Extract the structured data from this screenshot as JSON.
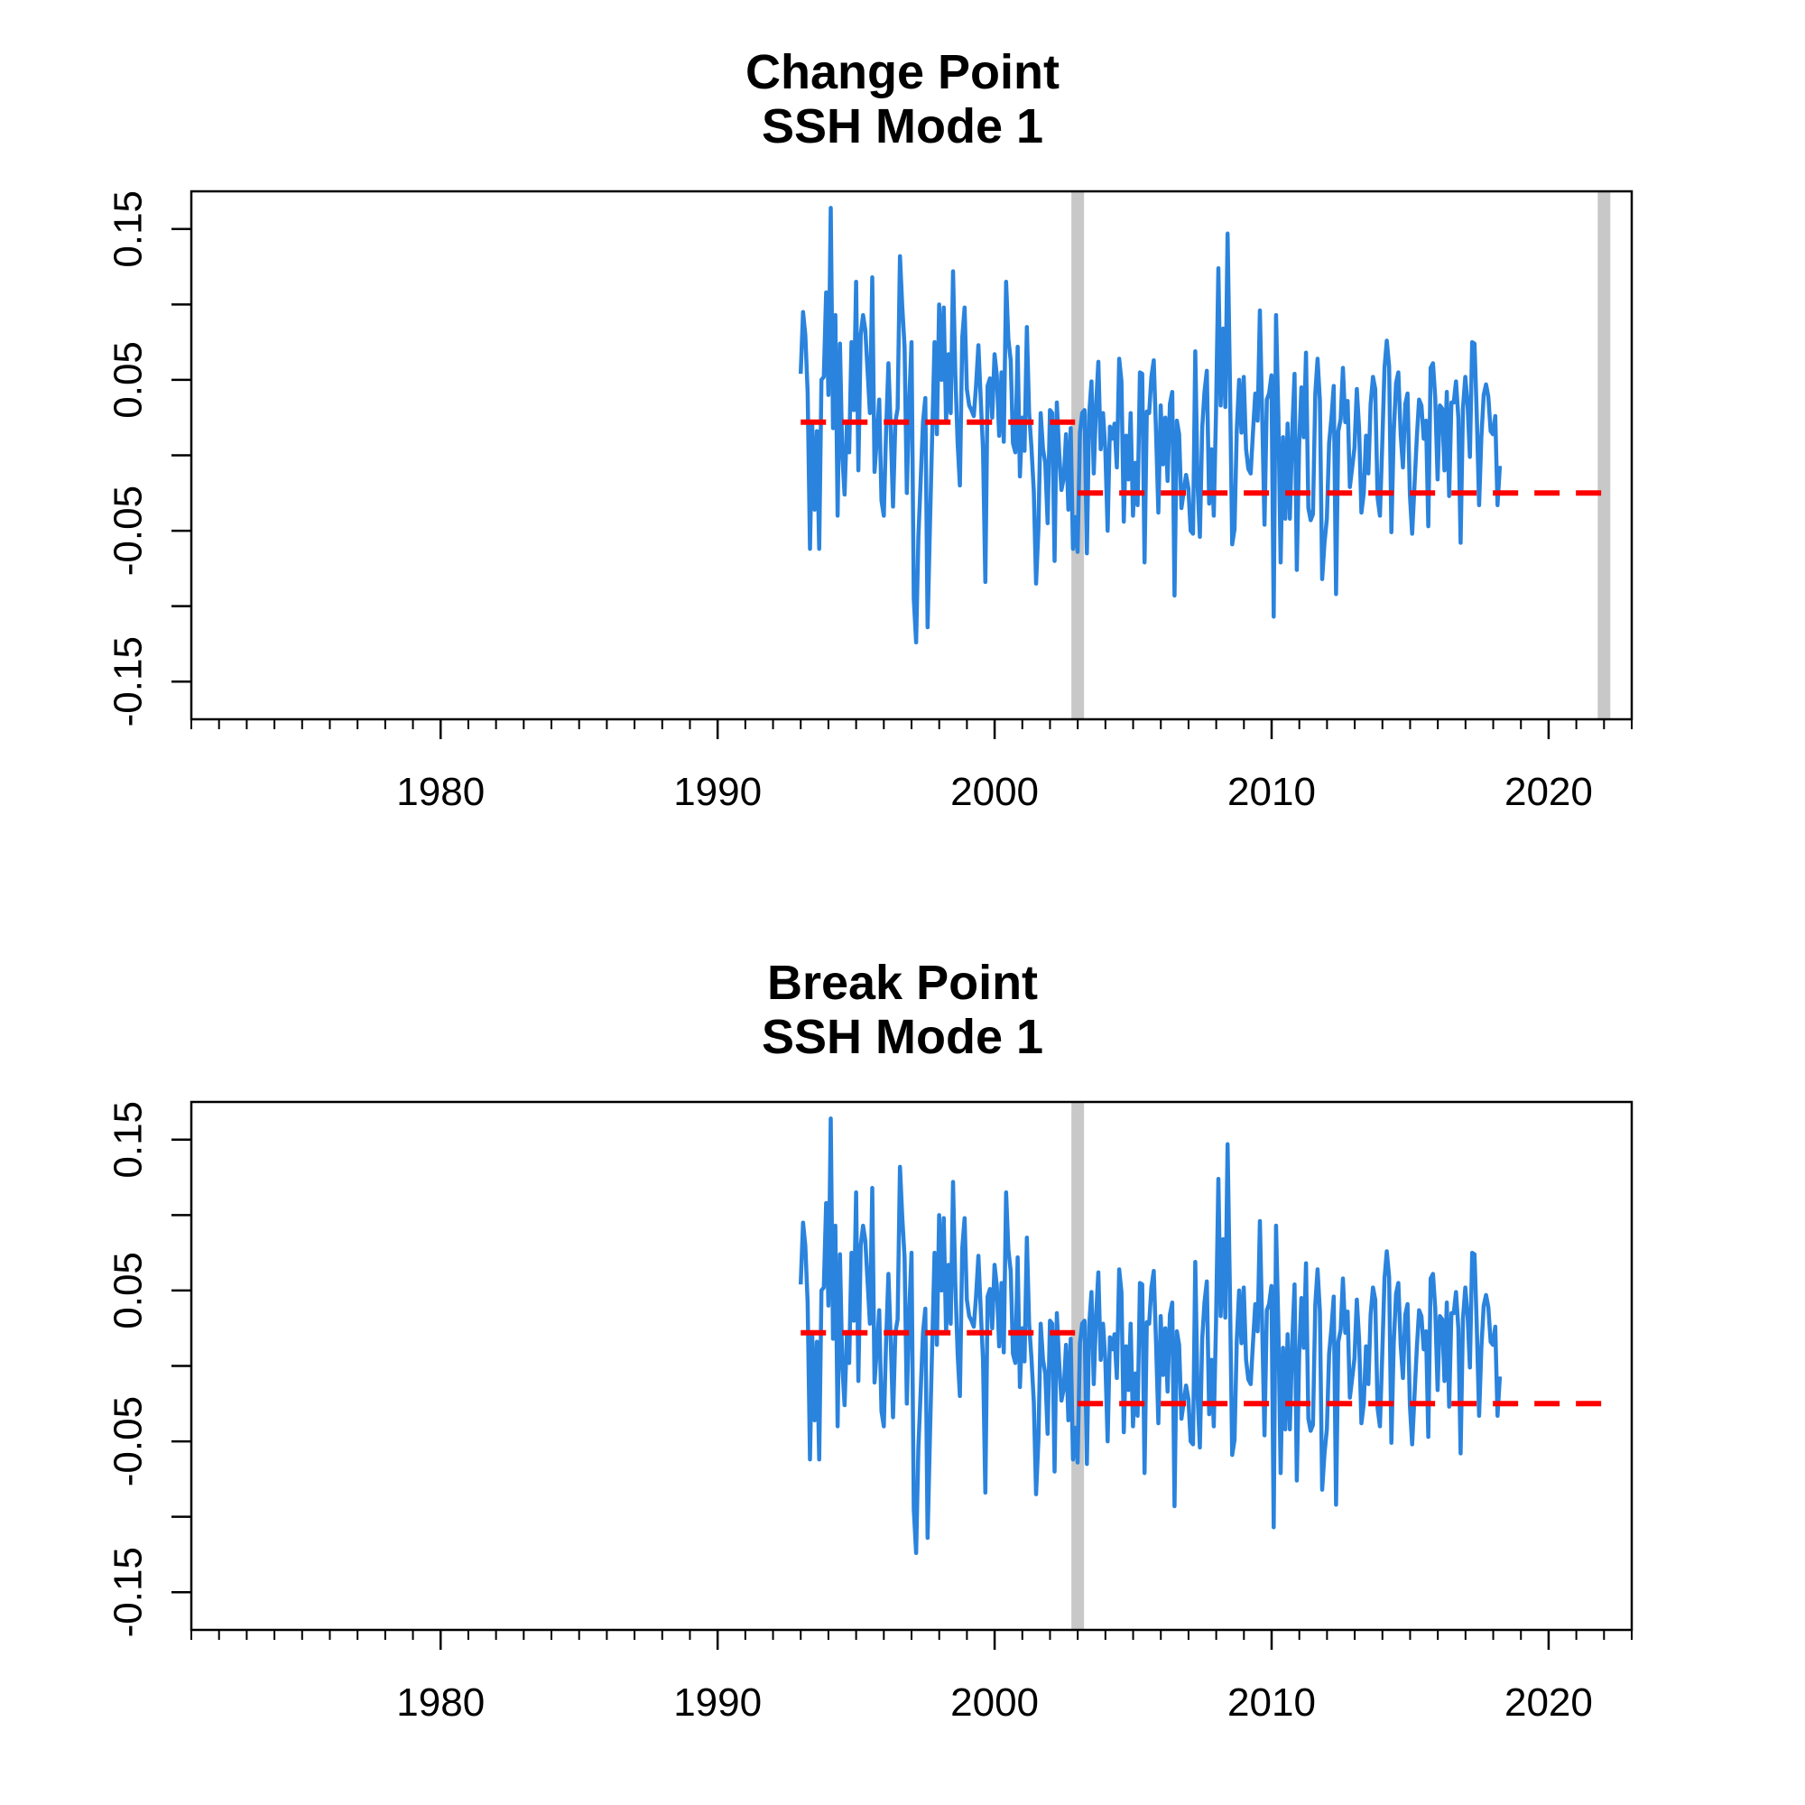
{
  "chart_data": [
    {
      "type": "line",
      "title": "Change Point",
      "subtitle": "SSH Mode 1",
      "xlabel": "",
      "ylabel": "",
      "xlim": [
        1971,
        2023
      ],
      "ylim": [
        -0.175,
        0.175
      ],
      "x_tick_labels": [
        "1980",
        "1990",
        "2000",
        "2010",
        "2020"
      ],
      "x_ticks": [
        1980,
        1990,
        2000,
        2010,
        2020
      ],
      "y_tick_labels": [
        "-0.15",
        "-0.05",
        "0.05",
        "0.15"
      ],
      "y_ticks": [
        -0.15,
        -0.05,
        0.05,
        0.15
      ],
      "grid": false,
      "colors": {
        "series": "#2a83dd",
        "segment_mean": "#ff0000",
        "breaks": "#c8c8c8"
      },
      "breaks": [
        2003.0,
        2022.0
      ],
      "segment_means": [
        {
          "x": [
            1993.0,
            2003.0
          ],
          "y": 0.022
        },
        {
          "x": [
            2003.0,
            2022.0
          ],
          "y": -0.025
        }
      ],
      "series": [
        {
          "start": 1993.0,
          "step": 0.0833,
          "values": [
            0.054,
            0.095,
            0.08,
            0.042,
            -0.062,
            0.02,
            -0.036,
            0.016,
            -0.062,
            0.05,
            0.052,
            0.108,
            0.04,
            0.164,
            0.018,
            0.093,
            -0.04,
            0.074,
            0.0,
            -0.026,
            0.021,
            0.002,
            0.075,
            0.03,
            0.115,
            -0.01,
            0.08,
            0.093,
            0.083,
            0.055,
            0.028,
            0.118,
            -0.011,
            0.011,
            0.037,
            -0.03,
            -0.04,
            0.016,
            0.061,
            0.018,
            -0.034,
            0.022,
            0.031,
            0.132,
            0.099,
            0.072,
            -0.025,
            0.035,
            0.075,
            -0.095,
            -0.124,
            -0.054,
            -0.016,
            0.022,
            0.038,
            -0.114,
            -0.047,
            0.016,
            0.075,
            0.014,
            0.1,
            0.05,
            0.098,
            0.022,
            0.067,
            0.028,
            0.122,
            0.055,
            0.008,
            -0.02,
            0.078,
            0.098,
            0.044,
            0.033,
            0.03,
            0.026,
            0.046,
            0.073,
            0.037,
            0.004,
            -0.084,
            0.046,
            0.051,
            0.025,
            0.067,
            0.053,
            0.013,
            0.055,
            0.009,
            0.115,
            0.077,
            0.063,
            0.008,
            0.002,
            0.072,
            -0.014,
            0.025,
            0.003,
            0.085,
            0.028,
            0.005,
            -0.024,
            -0.085,
            -0.049,
            0.028,
            0.004,
            -0.005,
            -0.045,
            0.03,
            0.028,
            -0.07,
            0.035,
            0.002,
            -0.023,
            -0.015,
            0.014,
            -0.036,
            0.018,
            -0.062,
            -0.041,
            -0.064,
            0.015,
            0.028,
            0.03,
            -0.065,
            0.027,
            0.049,
            -0.012,
            0.033,
            0.062,
            0.004,
            0.028,
            0.004,
            -0.05,
            0.019,
            0.011,
            0.021,
            -0.008,
            0.064,
            0.049,
            -0.044,
            0.013,
            -0.016,
            0.028,
            -0.04,
            -0.005,
            -0.033,
            0.055,
            0.054,
            -0.071,
            0.029,
            0.028,
            0.052,
            0.063,
            0.014,
            -0.038,
            0.033,
            -0.006,
            0.025,
            -0.017,
            0.034,
            0.042,
            -0.093,
            0.023,
            0.014,
            -0.035,
            -0.024,
            -0.013,
            -0.022,
            -0.05,
            -0.052,
            0.069,
            -0.02,
            -0.054,
            0.018,
            0.042,
            0.056,
            -0.032,
            0.004,
            -0.04,
            0.029,
            0.124,
            0.033,
            0.084,
            0.032,
            0.147,
            0.049,
            -0.059,
            -0.049,
            0.017,
            0.05,
            0.015,
            0.052,
            0.004,
            -0.009,
            -0.012,
            0.015,
            0.041,
            0.023,
            0.096,
            0.025,
            -0.046,
            0.037,
            0.041,
            0.053,
            -0.107,
            0.093,
            0.025,
            -0.071,
            0.012,
            -0.042,
            0.021,
            -0.042,
            0.015,
            0.054,
            -0.076,
            0.007,
            0.045,
            0.012,
            0.068,
            -0.035,
            -0.043,
            -0.039,
            0.041,
            0.064,
            0.036,
            -0.082,
            -0.058,
            -0.042,
            0.008,
            0.025,
            0.046,
            -0.092,
            0.016,
            0.024,
            0.058,
            0.022,
            0.036,
            -0.021,
            -0.008,
            0.005,
            0.044,
            0.018,
            -0.038,
            -0.025,
            0.013,
            -0.012,
            0.034,
            0.052,
            0.044,
            -0.028,
            -0.04,
            0.006,
            0.058,
            0.076,
            0.059,
            -0.051,
            0.015,
            0.048,
            0.055,
            0.014,
            -0.008,
            0.034,
            0.041,
            -0.026,
            -0.052,
            -0.02,
            0.012,
            0.037,
            0.033,
            0.011,
            0.023,
            -0.047,
            0.058,
            0.061,
            0.038,
            -0.016,
            0.033,
            0.031,
            -0.01,
            0.042,
            -0.027,
            0.035,
            0.035,
            0.049,
            0.025,
            -0.058,
            0.031,
            0.052,
            0.034,
            -0.001,
            0.075,
            0.074,
            0.027,
            -0.033,
            0.012,
            0.04,
            0.047,
            0.039,
            0.016,
            0.014,
            0.026,
            -0.033,
            -0.007
          ]
        }
      ]
    },
    {
      "type": "line",
      "title": "Break Point",
      "subtitle": "SSH Mode 1",
      "xlabel": "",
      "ylabel": "",
      "xlim": [
        1971,
        2023
      ],
      "ylim": [
        -0.175,
        0.175
      ],
      "x_tick_labels": [
        "1980",
        "1990",
        "2000",
        "2010",
        "2020"
      ],
      "x_ticks": [
        1980,
        1990,
        2000,
        2010,
        2020
      ],
      "y_tick_labels": [
        "-0.15",
        "-0.05",
        "0.05",
        "0.15"
      ],
      "y_ticks": [
        -0.15,
        -0.05,
        0.05,
        0.15
      ],
      "grid": false,
      "colors": {
        "series": "#2a83dd",
        "segment_mean": "#ff0000",
        "breaks": "#c8c8c8"
      },
      "breaks": [
        2003.0
      ],
      "segment_means": [
        {
          "x": [
            1993.0,
            2003.0
          ],
          "y": 0.022
        },
        {
          "x": [
            2003.0,
            2022.0
          ],
          "y": -0.025
        }
      ],
      "series": [
        {
          "start": 1993.0,
          "step": 0.0833,
          "values": [
            0.054,
            0.095,
            0.08,
            0.042,
            -0.062,
            0.02,
            -0.036,
            0.016,
            -0.062,
            0.05,
            0.052,
            0.108,
            0.04,
            0.164,
            0.018,
            0.093,
            -0.04,
            0.074,
            0.0,
            -0.026,
            0.021,
            0.002,
            0.075,
            0.03,
            0.115,
            -0.01,
            0.08,
            0.093,
            0.083,
            0.055,
            0.028,
            0.118,
            -0.011,
            0.011,
            0.037,
            -0.03,
            -0.04,
            0.016,
            0.061,
            0.018,
            -0.034,
            0.022,
            0.031,
            0.132,
            0.099,
            0.072,
            -0.025,
            0.035,
            0.075,
            -0.095,
            -0.124,
            -0.054,
            -0.016,
            0.022,
            0.038,
            -0.114,
            -0.047,
            0.016,
            0.075,
            0.014,
            0.1,
            0.05,
            0.098,
            0.022,
            0.067,
            0.028,
            0.122,
            0.055,
            0.008,
            -0.02,
            0.078,
            0.098,
            0.044,
            0.033,
            0.03,
            0.026,
            0.046,
            0.073,
            0.037,
            0.004,
            -0.084,
            0.046,
            0.051,
            0.025,
            0.067,
            0.053,
            0.013,
            0.055,
            0.009,
            0.115,
            0.077,
            0.063,
            0.008,
            0.002,
            0.072,
            -0.014,
            0.025,
            0.003,
            0.085,
            0.028,
            0.005,
            -0.024,
            -0.085,
            -0.049,
            0.028,
            0.004,
            -0.005,
            -0.045,
            0.03,
            0.028,
            -0.07,
            0.035,
            0.002,
            -0.023,
            -0.015,
            0.014,
            -0.036,
            0.018,
            -0.062,
            -0.041,
            -0.064,
            0.015,
            0.028,
            0.03,
            -0.065,
            0.027,
            0.049,
            -0.012,
            0.033,
            0.062,
            0.004,
            0.028,
            0.004,
            -0.05,
            0.019,
            0.011,
            0.021,
            -0.008,
            0.064,
            0.049,
            -0.044,
            0.013,
            -0.016,
            0.028,
            -0.04,
            -0.005,
            -0.033,
            0.055,
            0.054,
            -0.071,
            0.029,
            0.028,
            0.052,
            0.063,
            0.014,
            -0.038,
            0.033,
            -0.006,
            0.025,
            -0.017,
            0.034,
            0.042,
            -0.093,
            0.023,
            0.014,
            -0.035,
            -0.024,
            -0.013,
            -0.022,
            -0.05,
            -0.052,
            0.069,
            -0.02,
            -0.054,
            0.018,
            0.042,
            0.056,
            -0.032,
            0.004,
            -0.04,
            0.029,
            0.124,
            0.033,
            0.084,
            0.032,
            0.147,
            0.049,
            -0.059,
            -0.049,
            0.017,
            0.05,
            0.015,
            0.052,
            0.004,
            -0.009,
            -0.012,
            0.015,
            0.041,
            0.023,
            0.096,
            0.025,
            -0.046,
            0.037,
            0.041,
            0.053,
            -0.107,
            0.093,
            0.025,
            -0.071,
            0.012,
            -0.042,
            0.021,
            -0.042,
            0.015,
            0.054,
            -0.076,
            0.007,
            0.045,
            0.012,
            0.068,
            -0.035,
            -0.043,
            -0.039,
            0.041,
            0.064,
            0.036,
            -0.082,
            -0.058,
            -0.042,
            0.008,
            0.025,
            0.046,
            -0.092,
            0.016,
            0.024,
            0.058,
            0.022,
            0.036,
            -0.021,
            -0.008,
            0.005,
            0.044,
            0.018,
            -0.038,
            -0.025,
            0.013,
            -0.012,
            0.034,
            0.052,
            0.044,
            -0.028,
            -0.04,
            0.006,
            0.058,
            0.076,
            0.059,
            -0.051,
            0.015,
            0.048,
            0.055,
            0.014,
            -0.008,
            0.034,
            0.041,
            -0.026,
            -0.052,
            -0.02,
            0.012,
            0.037,
            0.033,
            0.011,
            0.023,
            -0.047,
            0.058,
            0.061,
            0.038,
            -0.016,
            0.033,
            0.031,
            -0.01,
            0.042,
            -0.027,
            0.035,
            0.035,
            0.049,
            0.025,
            -0.058,
            0.031,
            0.052,
            0.034,
            -0.001,
            0.075,
            0.074,
            0.027,
            -0.033,
            0.012,
            0.04,
            0.047,
            0.039,
            0.016,
            0.014,
            0.026,
            -0.033,
            -0.007
          ]
        }
      ]
    }
  ]
}
